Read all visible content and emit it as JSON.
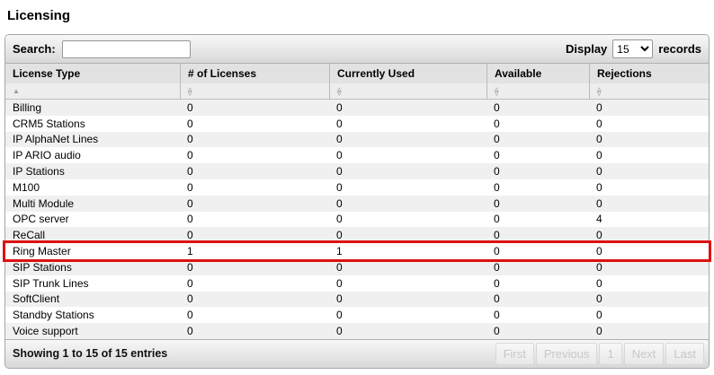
{
  "page_title": "Licensing",
  "toolbar": {
    "search_label": "Search:",
    "search_value": "",
    "display_label": "Display",
    "display_value": "15",
    "records_label": "records"
  },
  "icons": {
    "sort_asc": "▲",
    "sort_both_up": "▵",
    "sort_both_down": "▿"
  },
  "colors": {
    "highlight_border": "#dd1111",
    "odd_row_bg": "#f0f0f0",
    "even_row_bg": "#ffffff"
  },
  "table": {
    "columns": [
      {
        "label": "License Type",
        "sort": "asc"
      },
      {
        "label": "# of Licenses",
        "sort": "none"
      },
      {
        "label": "Currently Used",
        "sort": "none"
      },
      {
        "label": "Available",
        "sort": "none"
      },
      {
        "label": "Rejections",
        "sort": "none"
      }
    ],
    "rows": [
      {
        "license_type": "Billing",
        "num_licenses": "0",
        "currently_used": "0",
        "available": "0",
        "rejections": "0",
        "highlighted": false
      },
      {
        "license_type": "CRM5 Stations",
        "num_licenses": "0",
        "currently_used": "0",
        "available": "0",
        "rejections": "0",
        "highlighted": false
      },
      {
        "license_type": "IP AlphaNet Lines",
        "num_licenses": "0",
        "currently_used": "0",
        "available": "0",
        "rejections": "0",
        "highlighted": false
      },
      {
        "license_type": "IP ARIO audio",
        "num_licenses": "0",
        "currently_used": "0",
        "available": "0",
        "rejections": "0",
        "highlighted": false
      },
      {
        "license_type": "IP Stations",
        "num_licenses": "0",
        "currently_used": "0",
        "available": "0",
        "rejections": "0",
        "highlighted": false
      },
      {
        "license_type": "M100",
        "num_licenses": "0",
        "currently_used": "0",
        "available": "0",
        "rejections": "0",
        "highlighted": false
      },
      {
        "license_type": "Multi Module",
        "num_licenses": "0",
        "currently_used": "0",
        "available": "0",
        "rejections": "0",
        "highlighted": false
      },
      {
        "license_type": "OPC server",
        "num_licenses": "0",
        "currently_used": "0",
        "available": "0",
        "rejections": "4",
        "highlighted": false
      },
      {
        "license_type": "ReCall",
        "num_licenses": "0",
        "currently_used": "0",
        "available": "0",
        "rejections": "0",
        "highlighted": false
      },
      {
        "license_type": "Ring Master",
        "num_licenses": "1",
        "currently_used": "1",
        "available": "0",
        "rejections": "0",
        "highlighted": true
      },
      {
        "license_type": "SIP Stations",
        "num_licenses": "0",
        "currently_used": "0",
        "available": "0",
        "rejections": "0",
        "highlighted": false
      },
      {
        "license_type": "SIP Trunk Lines",
        "num_licenses": "0",
        "currently_used": "0",
        "available": "0",
        "rejections": "0",
        "highlighted": false
      },
      {
        "license_type": "SoftClient",
        "num_licenses": "0",
        "currently_used": "0",
        "available": "0",
        "rejections": "0",
        "highlighted": false
      },
      {
        "license_type": "Standby Stations",
        "num_licenses": "0",
        "currently_used": "0",
        "available": "0",
        "rejections": "0",
        "highlighted": false
      },
      {
        "license_type": "Voice support",
        "num_licenses": "0",
        "currently_used": "0",
        "available": "0",
        "rejections": "0",
        "highlighted": false
      }
    ]
  },
  "footer": {
    "showing_text": "Showing 1 to 15 of 15 entries",
    "pagination": [
      {
        "label": "First"
      },
      {
        "label": "Previous"
      },
      {
        "label": "1"
      },
      {
        "label": "Next"
      },
      {
        "label": "Last"
      }
    ]
  }
}
